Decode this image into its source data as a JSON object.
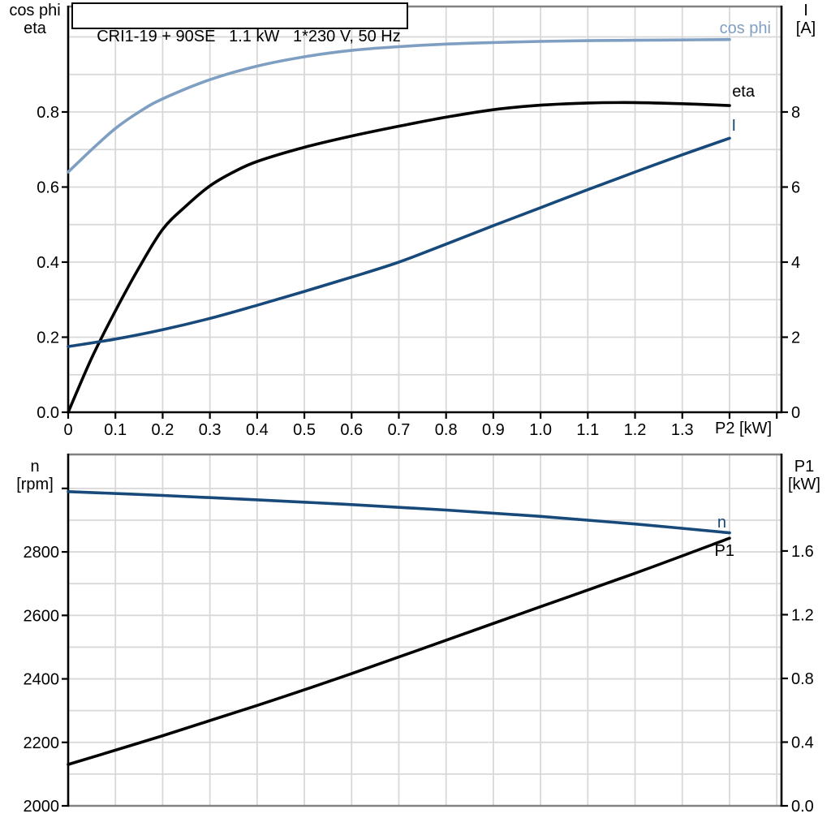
{
  "title": "CRI1-19 + 90SE   1.1 kW   1*230 V, 50 Hz",
  "colors": {
    "light_blue": "#7f9fc2",
    "dark_blue": "#17497b",
    "black": "#000000",
    "grid": "#d8d8d8",
    "frame": "#828282"
  },
  "chart_data": [
    {
      "type": "line",
      "x_unit": "P2 [kW]",
      "xlim": [
        0,
        1.51
      ],
      "x_grid_step": 0.1,
      "x_ticks": [
        [
          0,
          "0"
        ],
        [
          0.1,
          "0.1"
        ],
        [
          0.2,
          "0.2"
        ],
        [
          0.3,
          "0.3"
        ],
        [
          0.4,
          "0.4"
        ],
        [
          0.5,
          "0.5"
        ],
        [
          0.6,
          "0.6"
        ],
        [
          0.7,
          "0.7"
        ],
        [
          0.8,
          "0.8"
        ],
        [
          0.9,
          "0.9"
        ],
        [
          1.0,
          "1.0"
        ],
        [
          1.1,
          "1.1"
        ],
        [
          1.2,
          "1.2"
        ],
        [
          1.3,
          "1.3"
        ],
        [
          1.4,
          ""
        ],
        [
          1.5,
          ""
        ]
      ],
      "left_axis": {
        "title_lines": [
          "cos phi",
          "eta"
        ],
        "lim": [
          0,
          1.081
        ],
        "grid_values": [
          0.1,
          0.2,
          0.3,
          0.4,
          0.5,
          0.6,
          0.7,
          0.8,
          0.9,
          1.0
        ],
        "ticks": [
          [
            0,
            "0.0"
          ],
          [
            0.2,
            "0.2"
          ],
          [
            0.4,
            "0.4"
          ],
          [
            0.6,
            "0.6"
          ],
          [
            0.8,
            "0.8"
          ]
        ]
      },
      "right_axis": {
        "title_lines": [
          "I",
          "[A]"
        ],
        "lim": [
          0,
          10.81
        ],
        "ticks": [
          [
            0,
            "0"
          ],
          [
            2,
            "2"
          ],
          [
            4,
            "4"
          ],
          [
            6,
            "6"
          ],
          [
            8,
            "8"
          ]
        ]
      },
      "series": [
        {
          "name": "cos phi",
          "axis": "left",
          "color_key": "light_blue",
          "points": [
            [
              0,
              0.64
            ],
            [
              0.05,
              0.7
            ],
            [
              0.1,
              0.756
            ],
            [
              0.15,
              0.8
            ],
            [
              0.2,
              0.835
            ],
            [
              0.3,
              0.886
            ],
            [
              0.4,
              0.922
            ],
            [
              0.5,
              0.947
            ],
            [
              0.6,
              0.964
            ],
            [
              0.7,
              0.974
            ],
            [
              0.8,
              0.981
            ],
            [
              0.9,
              0.985
            ],
            [
              1.0,
              0.988
            ],
            [
              1.1,
              0.99
            ],
            [
              1.2,
              0.991
            ],
            [
              1.3,
              0.992
            ],
            [
              1.4,
              0.993
            ]
          ]
        },
        {
          "name": "eta",
          "axis": "left",
          "color_key": "black",
          "points": [
            [
              0,
              0.0
            ],
            [
              0.05,
              0.145
            ],
            [
              0.1,
              0.27
            ],
            [
              0.15,
              0.385
            ],
            [
              0.2,
              0.487
            ],
            [
              0.25,
              0.55
            ],
            [
              0.3,
              0.603
            ],
            [
              0.35,
              0.64
            ],
            [
              0.4,
              0.668
            ],
            [
              0.5,
              0.706
            ],
            [
              0.6,
              0.736
            ],
            [
              0.7,
              0.762
            ],
            [
              0.8,
              0.786
            ],
            [
              0.9,
              0.806
            ],
            [
              1.0,
              0.818
            ],
            [
              1.1,
              0.824
            ],
            [
              1.2,
              0.825
            ],
            [
              1.3,
              0.822
            ],
            [
              1.4,
              0.817
            ]
          ]
        },
        {
          "name": "I",
          "axis": "right",
          "color_key": "dark_blue",
          "points": [
            [
              0,
              1.75
            ],
            [
              0.1,
              1.95
            ],
            [
              0.2,
              2.2
            ],
            [
              0.3,
              2.5
            ],
            [
              0.4,
              2.85
            ],
            [
              0.5,
              3.22
            ],
            [
              0.6,
              3.6
            ],
            [
              0.7,
              4.0
            ],
            [
              0.8,
              4.48
            ],
            [
              0.9,
              4.97
            ],
            [
              1.0,
              5.45
            ],
            [
              1.1,
              5.93
            ],
            [
              1.2,
              6.4
            ],
            [
              1.3,
              6.86
            ],
            [
              1.4,
              7.3
            ]
          ]
        }
      ]
    },
    {
      "type": "line",
      "x_unit": "",
      "xlim": [
        0,
        1.51
      ],
      "x_grid_step": 0.1,
      "x_ticks": [],
      "left_axis": {
        "title_lines": [
          "n",
          "[rpm]"
        ],
        "lim": [
          2000,
          3107
        ],
        "grid_values": [
          2100,
          2200,
          2300,
          2400,
          2500,
          2600,
          2700,
          2800,
          2900,
          3000
        ],
        "ticks": [
          [
            2000,
            "2000"
          ],
          [
            2200,
            "2200"
          ],
          [
            2400,
            "2400"
          ],
          [
            2600,
            "2600"
          ],
          [
            2800,
            "2800"
          ],
          [
            3000,
            ""
          ]
        ]
      },
      "right_axis": {
        "title_lines": [
          "P1",
          "[kW]"
        ],
        "lim": [
          0,
          2.206
        ],
        "ticks": [
          [
            0,
            "0.0"
          ],
          [
            0.4,
            "0.4"
          ],
          [
            0.8,
            "0.8"
          ],
          [
            1.2,
            "1.2"
          ],
          [
            1.6,
            "1.6"
          ]
        ]
      },
      "series": [
        {
          "name": "n",
          "axis": "left",
          "color_key": "dark_blue",
          "points": [
            [
              0,
              2990
            ],
            [
              0.2,
              2978
            ],
            [
              0.4,
              2964
            ],
            [
              0.6,
              2949
            ],
            [
              0.8,
              2932
            ],
            [
              1.0,
              2912
            ],
            [
              1.2,
              2888
            ],
            [
              1.4,
              2860
            ]
          ]
        },
        {
          "name": "P1",
          "axis": "right",
          "color_key": "black",
          "points": [
            [
              0,
              0.26
            ],
            [
              0.2,
              0.44
            ],
            [
              0.4,
              0.63
            ],
            [
              0.6,
              0.83
            ],
            [
              0.8,
              1.04
            ],
            [
              1.0,
              1.25
            ],
            [
              1.2,
              1.46
            ],
            [
              1.4,
              1.68
            ]
          ]
        }
      ]
    }
  ]
}
